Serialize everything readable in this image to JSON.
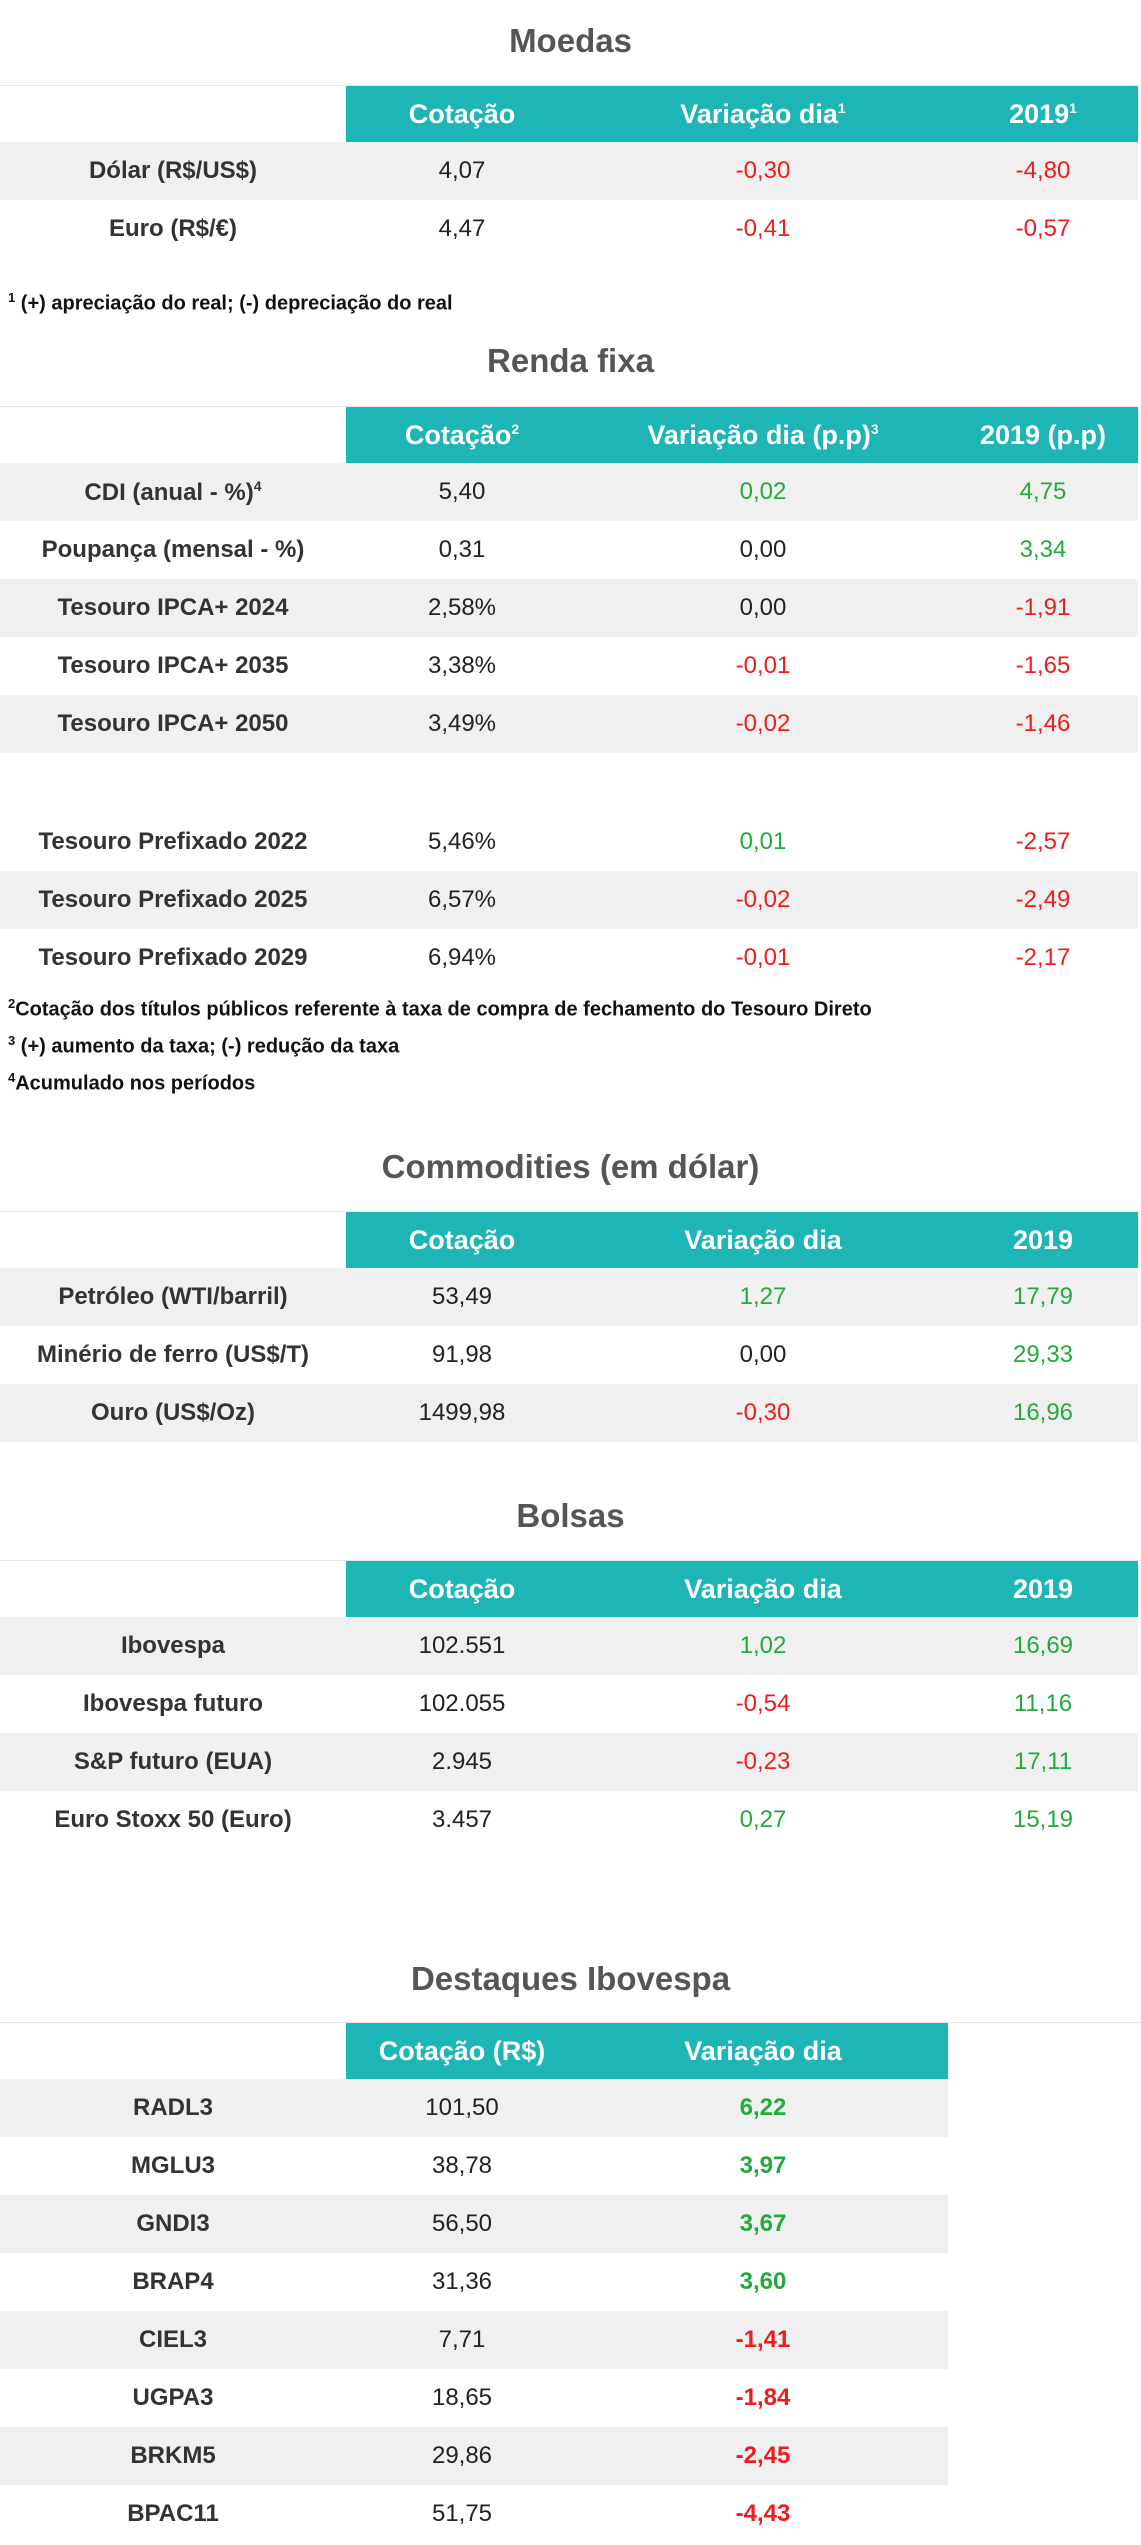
{
  "colors": {
    "header_bg": "#1db5b5",
    "positive": "#22aa3d",
    "negative": "#ee1c1c",
    "shade": "#f0f0f0"
  },
  "moedas": {
    "title": "Moedas",
    "headers": [
      "Cotação",
      "Variação dia",
      "2019"
    ],
    "header_sups": [
      "",
      "1",
      "1"
    ],
    "rows": [
      {
        "label": "Dólar (R$/US$)",
        "cot": "4,07",
        "var": "-0,30",
        "y": "-4,80"
      },
      {
        "label": "Euro (R$/€)",
        "cot": "4,47",
        "var": "-0,41",
        "y": "-0,57"
      }
    ],
    "note": {
      "sup": "1",
      "text": " (+) apreciação do real; (-) depreciação do real"
    }
  },
  "renda": {
    "title": "Renda fixa",
    "headers": [
      "Cotação",
      "Variação dia (p.p)",
      "2019 (p.p)"
    ],
    "header_sups": [
      "2",
      "3",
      ""
    ],
    "rows": [
      {
        "label": "CDI (anual - %)",
        "sup": "4",
        "cot": "5,40",
        "var": "0,02",
        "y": "4,75"
      },
      {
        "label": "Poupança (mensal - %)",
        "sup": "",
        "cot": "0,31",
        "var": "0,00",
        "y": "3,34"
      },
      {
        "label": "Tesouro IPCA+ 2024",
        "sup": "",
        "cot": "2,58%",
        "var": "0,00",
        "y": "-1,91"
      },
      {
        "label": "Tesouro IPCA+ 2035",
        "sup": "",
        "cot": "3,38%",
        "var": "-0,01",
        "y": "-1,65"
      },
      {
        "label": "Tesouro IPCA+ 2050",
        "sup": "",
        "cot": "3,49%",
        "var": "-0,02",
        "y": "-1,46"
      }
    ],
    "rows2": [
      {
        "label": "Tesouro Prefixado 2022",
        "cot": "5,46%",
        "var": "0,01",
        "y": "-2,57"
      },
      {
        "label": "Tesouro Prefixado 2025",
        "cot": "6,57%",
        "var": "-0,02",
        "y": "-2,49"
      },
      {
        "label": "Tesouro Prefixado 2029",
        "cot": "6,94%",
        "var": "-0,01",
        "y": "-2,17"
      }
    ],
    "notes": [
      {
        "sup": "2",
        "text": "Cotação dos títulos públicos referente à taxa de compra de fechamento do Tesouro Direto"
      },
      {
        "sup": "3",
        "text": " (+) aumento da taxa; (-) redução da taxa"
      },
      {
        "sup": "4",
        "text": "Acumulado nos períodos"
      }
    ]
  },
  "commodities": {
    "title": "Commodities (em dólar)",
    "headers": [
      "Cotação",
      "Variação dia",
      "2019"
    ],
    "rows": [
      {
        "label": "Petróleo (WTI/barril)",
        "cot": "53,49",
        "var": "1,27",
        "y": "17,79"
      },
      {
        "label": "Minério de ferro (US$/T)",
        "cot": "91,98",
        "var": "0,00",
        "y": "29,33"
      },
      {
        "label": "Ouro (US$/Oz)",
        "cot": "1499,98",
        "var": "-0,30",
        "y": "16,96"
      }
    ]
  },
  "bolsas": {
    "title": "Bolsas",
    "headers": [
      "Cotação",
      "Variação dia",
      "2019"
    ],
    "rows": [
      {
        "label": "Ibovespa",
        "cot": "102.551",
        "var": "1,02",
        "y": "16,69"
      },
      {
        "label": "Ibovespa futuro",
        "cot": "102.055",
        "var": "-0,54",
        "y": "11,16"
      },
      {
        "label": "S&P futuro (EUA)",
        "cot": "2.945",
        "var": "-0,23",
        "y": "17,11"
      },
      {
        "label": "Euro Stoxx 50 (Euro)",
        "cot": "3.457",
        "var": "0,27",
        "y": "15,19"
      }
    ]
  },
  "destaques": {
    "title": "Destaques Ibovespa",
    "headers": [
      "Cotação (R$)",
      "Variação dia"
    ],
    "rows": [
      {
        "label": "RADL3",
        "cot": "101,50",
        "var": "6,22"
      },
      {
        "label": "MGLU3",
        "cot": "38,78",
        "var": "3,97"
      },
      {
        "label": "GNDI3",
        "cot": "56,50",
        "var": "3,67"
      },
      {
        "label": "BRAP4",
        "cot": "31,36",
        "var": "3,60"
      },
      {
        "label": "CIEL3",
        "cot": "7,71",
        "var": "-1,41"
      },
      {
        "label": "UGPA3",
        "cot": "18,65",
        "var": "-1,84"
      },
      {
        "label": "BRKM5",
        "cot": "29,86",
        "var": "-2,45"
      },
      {
        "label": "BPAC11",
        "cot": "51,75",
        "var": "-4,43"
      }
    ]
  }
}
